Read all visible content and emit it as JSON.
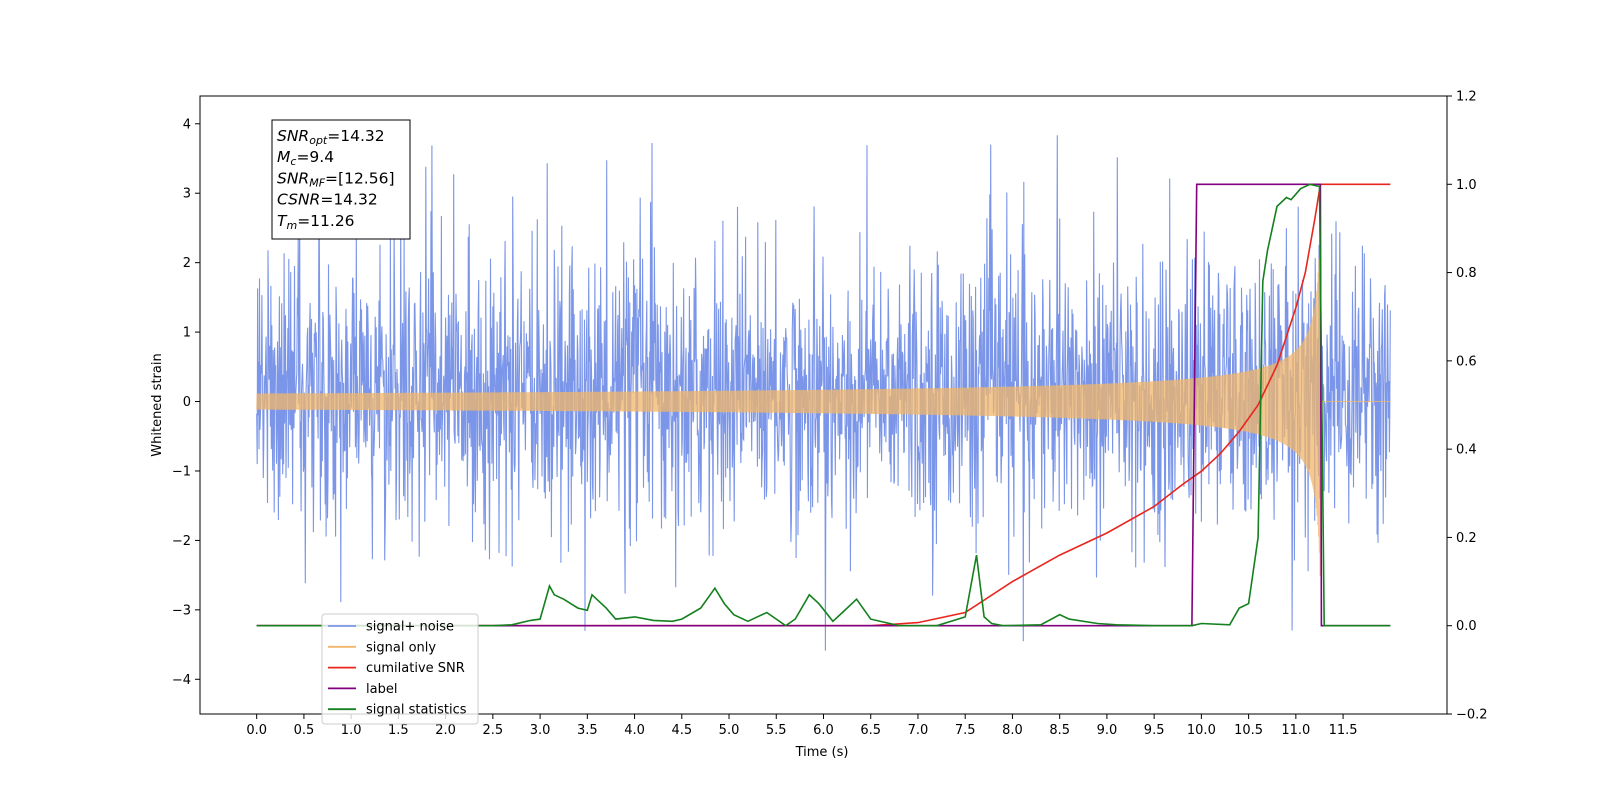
{
  "chart_data": {
    "type": "line",
    "title": "",
    "xlabel": "Time (s)",
    "ylabel": "Whitened strain",
    "xlim": [
      -0.6,
      12.6
    ],
    "ylim": [
      -4.5,
      4.4
    ],
    "y2lim": [
      -0.2,
      1.2
    ],
    "x_ticks": [
      "0.0",
      "0.5",
      "1.0",
      "1.5",
      "2.0",
      "2.5",
      "3.0",
      "3.5",
      "4.0",
      "4.5",
      "5.0",
      "5.5",
      "6.0",
      "6.5",
      "7.0",
      "7.5",
      "8.0",
      "8.5",
      "9.0",
      "9.5",
      "10.0",
      "10.5",
      "11.0",
      "11.5"
    ],
    "y_ticks": [
      "−4",
      "−3",
      "−2",
      "−1",
      "0",
      "1",
      "2",
      "3",
      "4"
    ],
    "y2_ticks": [
      "−0.2",
      "0.0",
      "0.2",
      "0.4",
      "0.6",
      "0.8",
      "1.0",
      "1.2"
    ],
    "grid": false,
    "legend_position": "lower-left",
    "annotation": {
      "lines": [
        {
          "main": "SNR",
          "sub": "opt",
          "rest": "=14.32"
        },
        {
          "main": "M",
          "sub": "c",
          "rest": "=9.4"
        },
        {
          "main": "SNR",
          "sub": "MF",
          "rest": "=[12.56]"
        },
        {
          "main": "CSNR",
          "sub": "",
          "rest": "=14.32"
        },
        {
          "main": "T",
          "sub": "m",
          "rest": "=11.26"
        }
      ]
    },
    "series": [
      {
        "name": "signal+ noise",
        "axis": "left",
        "color": "#7b96e8",
        "description_stats": {
          "x_start": 0.0,
          "x_end": 12.0,
          "band_typical": [
            -1.9,
            2.3
          ],
          "peak_max": 3.97,
          "trough_min": -3.68
        }
      },
      {
        "name": "signal only",
        "axis": "left",
        "color": "#f2b66a",
        "chirp": {
          "start": 0.0,
          "merger": 11.26,
          "end": 12.0,
          "amplitude_at_merger": 2.9
        }
      },
      {
        "name": "cumilative SNR",
        "axis": "right",
        "color": "#e8261e",
        "x": [
          0.0,
          6.5,
          7.0,
          7.5,
          8.0,
          8.5,
          9.0,
          9.5,
          9.8,
          10.0,
          10.2,
          10.4,
          10.6,
          10.8,
          11.0,
          11.1,
          11.2,
          11.26,
          12.0
        ],
        "values": [
          0.0,
          0.0,
          0.007,
          0.03,
          0.1,
          0.16,
          0.21,
          0.27,
          0.32,
          0.35,
          0.39,
          0.44,
          0.5,
          0.59,
          0.72,
          0.8,
          0.92,
          1.0,
          1.0
        ]
      },
      {
        "name": "label",
        "axis": "right",
        "color": "#800080",
        "x": [
          0.0,
          9.9,
          9.95,
          11.26,
          11.27,
          12.0
        ],
        "values": [
          0.0,
          0.0,
          1.0,
          1.0,
          0.0,
          0.0
        ]
      },
      {
        "name": "signal statistics",
        "axis": "right",
        "color": "#14801e",
        "x": [
          0.0,
          2.5,
          2.7,
          2.9,
          3.0,
          3.1,
          3.15,
          3.25,
          3.4,
          3.5,
          3.55,
          3.7,
          3.8,
          4.0,
          4.2,
          4.4,
          4.5,
          4.7,
          4.85,
          4.95,
          5.05,
          5.2,
          5.4,
          5.6,
          5.7,
          5.85,
          5.95,
          6.1,
          6.2,
          6.35,
          6.5,
          6.8,
          7.2,
          7.5,
          7.62,
          7.7,
          7.78,
          7.9,
          8.3,
          8.5,
          8.6,
          8.9,
          9.1,
          9.5,
          9.9,
          10.0,
          10.3,
          10.4,
          10.5,
          10.6,
          10.65,
          10.7,
          10.8,
          10.9,
          10.95,
          11.05,
          11.15,
          11.25,
          11.3,
          11.35,
          12.0
        ],
        "values": [
          0.0,
          0.0,
          0.002,
          0.012,
          0.015,
          0.09,
          0.07,
          0.06,
          0.04,
          0.035,
          0.07,
          0.04,
          0.015,
          0.02,
          0.012,
          0.01,
          0.015,
          0.04,
          0.085,
          0.05,
          0.025,
          0.01,
          0.03,
          0.0,
          0.015,
          0.07,
          0.05,
          0.01,
          0.03,
          0.06,
          0.015,
          0.0,
          0.0,
          0.02,
          0.16,
          0.02,
          0.005,
          0.0,
          0.002,
          0.025,
          0.015,
          0.005,
          0.002,
          0.0,
          0.0,
          0.005,
          0.002,
          0.04,
          0.05,
          0.2,
          0.78,
          0.85,
          0.95,
          0.97,
          0.965,
          0.99,
          1.0,
          0.995,
          0.0,
          0.0,
          0.0
        ]
      }
    ]
  }
}
